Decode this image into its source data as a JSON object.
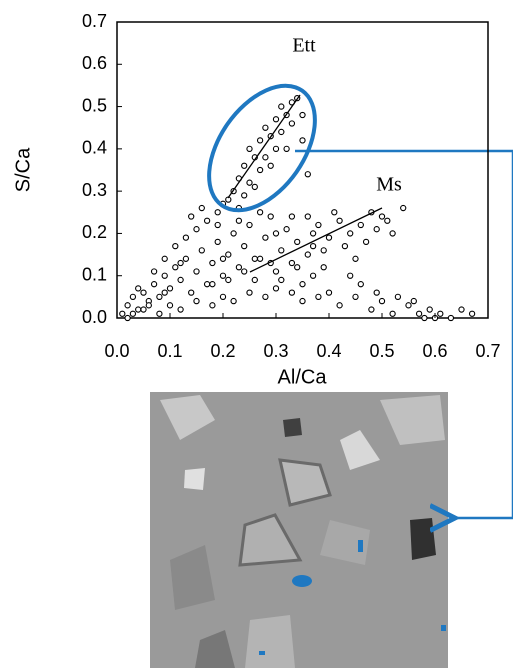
{
  "chart_data": {
    "type": "scatter",
    "x_label": "Al/Ca",
    "y_label": "S/Ca",
    "annotations": [
      "Ett",
      "Ms"
    ],
    "xlim": [
      0,
      0.7
    ],
    "ylim": [
      0,
      0.7
    ],
    "xticks": [
      {
        "value": 0,
        "label": "0.0"
      },
      0.1,
      0.2,
      0.3,
      0.4,
      0.5,
      0.6,
      0.7
    ],
    "yticks": [
      {
        "value": 0,
        "label": "0.0"
      },
      0.1,
      0.2,
      0.3,
      0.4,
      0.5,
      0.6,
      0.7
    ],
    "marker_color": "#000000",
    "x": [
      0.22,
      0.23,
      0.24,
      0.25,
      0.26,
      0.27,
      0.28,
      0.29,
      0.3,
      0.31,
      0.33,
      0.34,
      0.32,
      0.3,
      0.27,
      0.25,
      0.21,
      0.24,
      0.28,
      0.31,
      0.33,
      0.35,
      0.29,
      0.26,
      0.2,
      0.32,
      0.35,
      0.23,
      0.19,
      0.36,
      0.38,
      0.4,
      0.42,
      0.44,
      0.46,
      0.48,
      0.5,
      0.52,
      0.54,
      0.36,
      0.39,
      0.43,
      0.47,
      0.49,
      0.41,
      0.37,
      0.45,
      0.51,
      0.42,
      0.45,
      0.48,
      0.5,
      0.52,
      0.55,
      0.57,
      0.59,
      0.61,
      0.63,
      0.65,
      0.67,
      0.46,
      0.49,
      0.53,
      0.56,
      0.44,
      0.4,
      0.58,
      0.6,
      0.01,
      0.02,
      0.03,
      0.04,
      0.05,
      0.06,
      0.07,
      0.08,
      0.09,
      0.1,
      0.11,
      0.12,
      0.13,
      0.14,
      0.15,
      0.16,
      0.17,
      0.18,
      0.19,
      0.2,
      0.21,
      0.22,
      0.23,
      0.24,
      0.25,
      0.26,
      0.27,
      0.28,
      0.29,
      0.3,
      0.31,
      0.32,
      0.33,
      0.34,
      0.35,
      0.36,
      0.37,
      0.38,
      0.39,
      0.02,
      0.05,
      0.08,
      0.1,
      0.12,
      0.15,
      0.18,
      0.2,
      0.22,
      0.25,
      0.28,
      0.3,
      0.33,
      0.35,
      0.04,
      0.07,
      0.09,
      0.11,
      0.13,
      0.15,
      0.17,
      0.19,
      0.14,
      0.16,
      0.12,
      0.18,
      0.21,
      0.24,
      0.26,
      0.29,
      0.31,
      0.34,
      0.37,
      0.23,
      0.27,
      0.3,
      0.33,
      0.06,
      0.03,
      0.09,
      0.2
    ],
    "values": [
      0.3,
      0.33,
      0.36,
      0.4,
      0.38,
      0.42,
      0.45,
      0.43,
      0.47,
      0.5,
      0.51,
      0.52,
      0.48,
      0.4,
      0.35,
      0.32,
      0.28,
      0.29,
      0.38,
      0.44,
      0.46,
      0.48,
      0.36,
      0.31,
      0.27,
      0.4,
      0.42,
      0.26,
      0.25,
      0.34,
      0.22,
      0.19,
      0.23,
      0.2,
      0.22,
      0.25,
      0.24,
      0.2,
      0.26,
      0.24,
      0.16,
      0.17,
      0.18,
      0.21,
      0.25,
      0.2,
      0.14,
      0.23,
      0.03,
      0.05,
      0.02,
      0.04,
      0.01,
      0.03,
      0.01,
      0.02,
      0.01,
      0.0,
      0.02,
      0.01,
      0.08,
      0.06,
      0.05,
      0.04,
      0.1,
      0.06,
      0.0,
      0.0,
      0.01,
      0.03,
      0.05,
      0.02,
      0.06,
      0.04,
      0.08,
      0.05,
      0.1,
      0.07,
      0.12,
      0.09,
      0.14,
      0.06,
      0.11,
      0.16,
      0.08,
      0.13,
      0.18,
      0.1,
      0.15,
      0.2,
      0.12,
      0.17,
      0.22,
      0.09,
      0.14,
      0.19,
      0.24,
      0.11,
      0.16,
      0.21,
      0.13,
      0.18,
      0.08,
      0.15,
      0.1,
      0.05,
      0.12,
      0.0,
      0.02,
      0.01,
      0.03,
      0.02,
      0.04,
      0.03,
      0.05,
      0.04,
      0.06,
      0.05,
      0.07,
      0.06,
      0.04,
      0.07,
      0.11,
      0.14,
      0.17,
      0.19,
      0.21,
      0.23,
      0.22,
      0.24,
      0.26,
      0.13,
      0.08,
      0.09,
      0.11,
      0.14,
      0.13,
      0.09,
      0.12,
      0.17,
      0.23,
      0.25,
      0.2,
      0.24,
      0.03,
      0.01,
      0.06,
      0.14
    ]
  }
}
